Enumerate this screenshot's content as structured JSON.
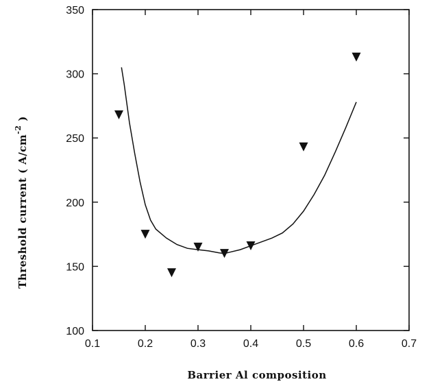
{
  "chart_data": {
    "type": "scatter",
    "title": "",
    "xlabel": "Barrier Al composition",
    "ylabel_main": "Threshold current ( A/cm",
    "ylabel_sup": "-2",
    "ylabel_close": " )",
    "xlim": [
      0.1,
      0.7
    ],
    "ylim": [
      100,
      350
    ],
    "xticks": [
      0.1,
      0.2,
      0.3,
      0.4,
      0.5,
      0.6,
      0.7
    ],
    "yticks": [
      100,
      150,
      200,
      250,
      300,
      350
    ],
    "xtick_labels": [
      "0.1",
      "0.2",
      "0.3",
      "0.4",
      "0.5",
      "0.6",
      "0.7"
    ],
    "ytick_labels": [
      "100",
      "150",
      "200",
      "250",
      "300",
      "350"
    ],
    "grid": false,
    "series": [
      {
        "kind": "markers",
        "marker": "down-triangle",
        "x": [
          0.15,
          0.2,
          0.25,
          0.3,
          0.35,
          0.4,
          0.5,
          0.6
        ],
        "y": [
          268,
          175,
          145,
          165,
          160,
          166,
          243,
          313
        ]
      },
      {
        "kind": "line",
        "x": [
          0.155,
          0.16,
          0.17,
          0.18,
          0.19,
          0.2,
          0.21,
          0.22,
          0.24,
          0.26,
          0.28,
          0.3,
          0.32,
          0.34,
          0.35,
          0.36,
          0.38,
          0.4,
          0.42,
          0.44,
          0.46,
          0.48,
          0.5,
          0.52,
          0.54,
          0.56,
          0.58,
          0.6
        ],
        "y": [
          305,
          292,
          262,
          238,
          216,
          198,
          186,
          179,
          172,
          167,
          164,
          163,
          162,
          160.5,
          160,
          161,
          163,
          166,
          169,
          172,
          176,
          183,
          193,
          206,
          221,
          239,
          258,
          278
        ]
      }
    ]
  }
}
